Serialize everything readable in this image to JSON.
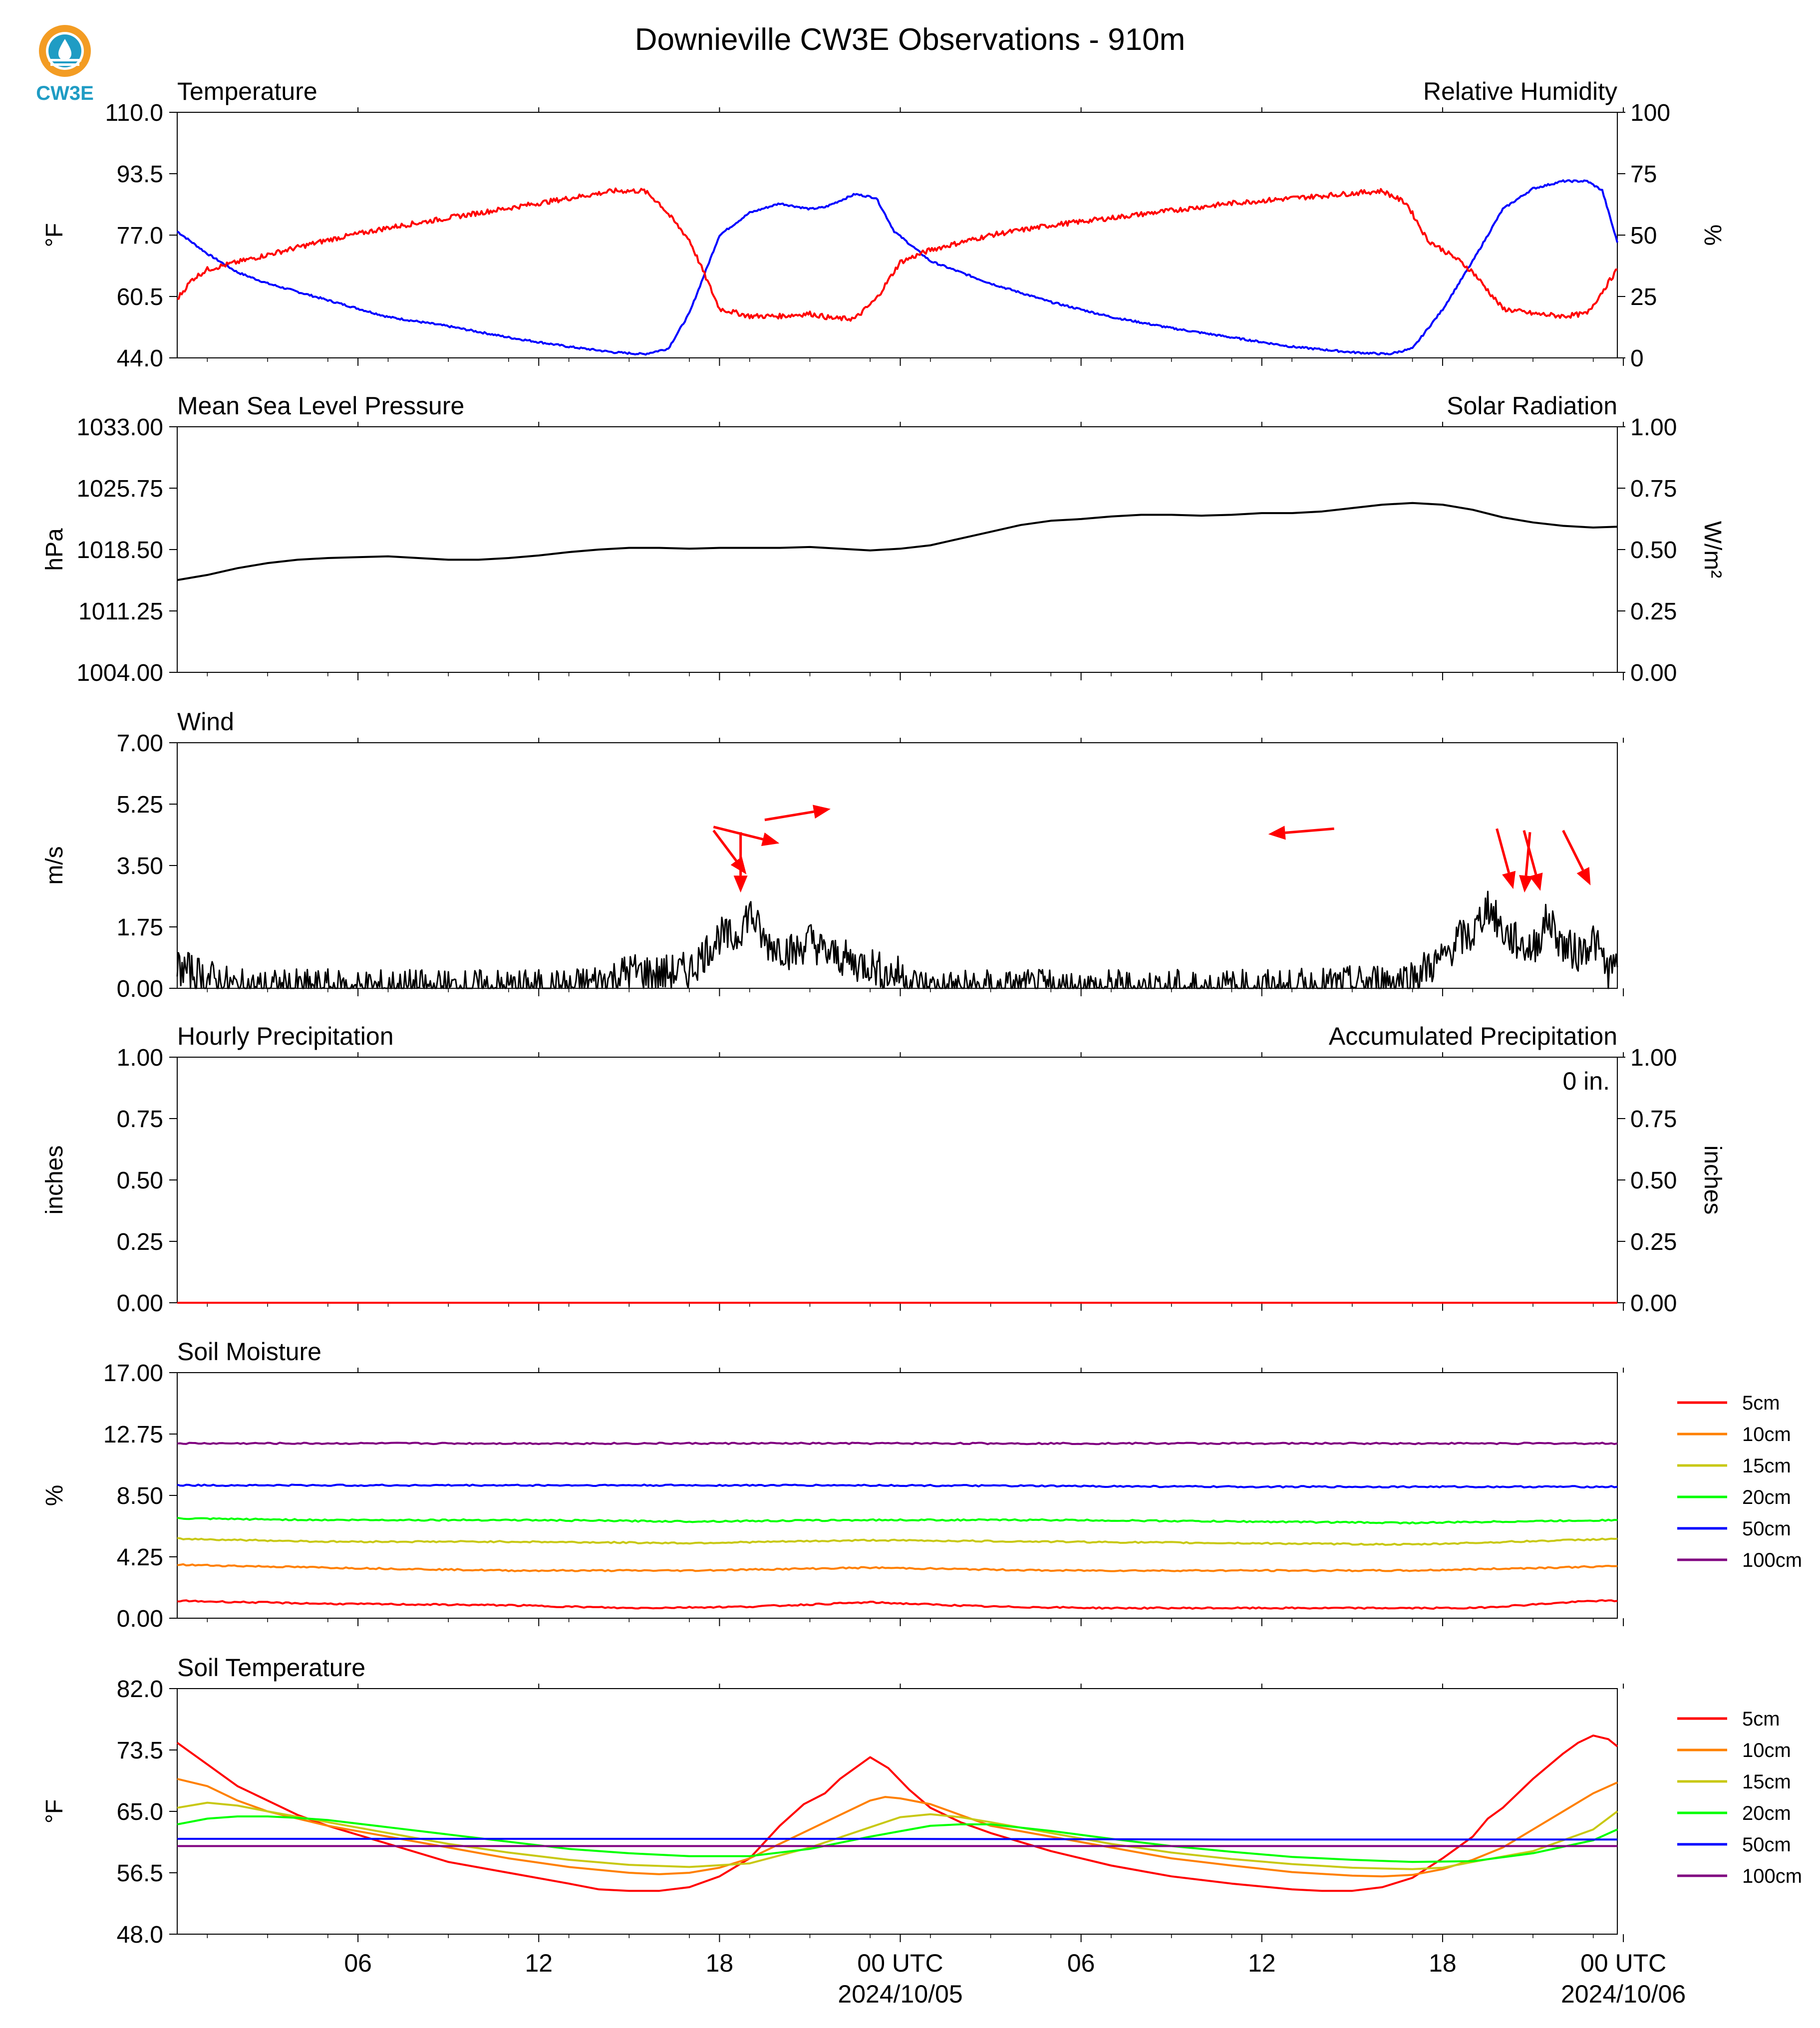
{
  "figure": {
    "title": "Downieville CW3E Observations - 910m",
    "logo_text": "CW3E",
    "x_ticks": [
      "06",
      "12",
      "18",
      "00 UTC",
      "06",
      "12",
      "18",
      "00 UTC"
    ],
    "x_date_labels": [
      "2024/10/05",
      "2024/10/06"
    ],
    "colors": {
      "temperature": "#0000ff",
      "humidity": "#ff0000",
      "solar": "#008000",
      "pressure": "#000000"
    }
  },
  "chart_data": [
    {
      "id": "temp",
      "type": "line",
      "left_title": "Temperature",
      "right_title": "Relative Humidity",
      "ylabel": "°F",
      "ylabel_right": "%",
      "ylim": [
        44,
        110
      ],
      "ylim_right": [
        0,
        100
      ],
      "yticks": [
        "110.0",
        "93.5",
        "77.0",
        "60.5",
        "44.0"
      ],
      "yticks_right": [
        "100",
        "75",
        "50",
        "25",
        "0"
      ],
      "x_hours_range": [
        1,
        48.8
      ],
      "series": [
        {
          "name": "Temperature",
          "axis": "left",
          "color": "#0000ff",
          "x": [
            1,
            2,
            3,
            4,
            6,
            8,
            10,
            12,
            14,
            15.5,
            16.5,
            17.3,
            18,
            19,
            20,
            21,
            22,
            22.5,
            23.5,
            24.2,
            24.8,
            26,
            28,
            30,
            32,
            34,
            36,
            38,
            40,
            41.2,
            42,
            43,
            44,
            45,
            46,
            47,
            47.8,
            48.3,
            48.8
          ],
          "y": [
            78,
            72,
            67,
            64,
            59.5,
            55,
            52.5,
            49.5,
            47,
            45.5,
            45,
            46.5,
            56,
            77,
            83,
            85.5,
            84,
            84.5,
            88,
            87,
            78,
            70,
            64,
            59,
            55,
            52,
            49.5,
            47,
            45.5,
            45,
            46.5,
            57,
            70,
            84,
            89.5,
            91.5,
            91.5,
            89,
            75
          ]
        },
        {
          "name": "Relative Humidity",
          "axis": "right",
          "color": "#ff0000",
          "x": [
            1,
            1.5,
            2,
            3,
            4,
            6,
            8,
            10,
            12,
            14,
            15.5,
            16.5,
            17,
            18,
            19,
            20,
            21,
            22,
            22.8,
            23.5,
            24.2,
            25,
            26,
            28,
            30,
            32,
            34,
            36,
            38,
            40,
            41,
            41.8,
            42.5,
            43.5,
            44,
            45,
            46,
            47,
            47.8,
            48.3,
            48.8
          ],
          "y": [
            24,
            32,
            36,
            39,
            42,
            48,
            53,
            57,
            61,
            65,
            68,
            68,
            63,
            48,
            20,
            17,
            17,
            18,
            16,
            16,
            24,
            39,
            44,
            50,
            54,
            57,
            60,
            63,
            65,
            67,
            68,
            63,
            48,
            40,
            35,
            20,
            18,
            17,
            18,
            27,
            36
          ]
        }
      ]
    },
    {
      "id": "pressure",
      "type": "line",
      "left_title": "Mean Sea Level Pressure",
      "right_title": "Solar Radiation",
      "ylabel": "hPa",
      "ylabel_right": "W/m²",
      "ylim": [
        1004,
        1033
      ],
      "ylim_right": [
        0,
        1
      ],
      "yticks": [
        "1033.00",
        "1025.75",
        "1018.50",
        "1011.25",
        "1004.00"
      ],
      "yticks_right": [
        "1.00",
        "0.75",
        "0.50",
        "0.25",
        "0.00"
      ],
      "series": [
        {
          "name": "Mean Sea Level Pressure",
          "axis": "left",
          "color": "#000000",
          "x": [
            1,
            2,
            3,
            4,
            5,
            6,
            7,
            8,
            9,
            10,
            11,
            12,
            13,
            14,
            15,
            16,
            17,
            18,
            19,
            20,
            21,
            22,
            23,
            24,
            25,
            26,
            27,
            28,
            29,
            30,
            31,
            32,
            33,
            34,
            35,
            36,
            37,
            38,
            39,
            40,
            41,
            42,
            43,
            44,
            45,
            46,
            47,
            48,
            48.8
          ],
          "y": [
            1014.9,
            1015.5,
            1016.3,
            1016.9,
            1017.3,
            1017.5,
            1017.6,
            1017.7,
            1017.5,
            1017.3,
            1017.3,
            1017.5,
            1017.8,
            1018.2,
            1018.5,
            1018.7,
            1018.7,
            1018.6,
            1018.7,
            1018.7,
            1018.7,
            1018.8,
            1018.6,
            1018.4,
            1018.6,
            1019.0,
            1019.8,
            1020.6,
            1021.4,
            1021.9,
            1022.1,
            1022.4,
            1022.6,
            1022.6,
            1022.5,
            1022.6,
            1022.8,
            1022.8,
            1023.0,
            1023.4,
            1023.8,
            1024.0,
            1023.8,
            1023.2,
            1022.3,
            1021.7,
            1021.3,
            1021.1,
            1021.2
          ]
        }
      ]
    },
    {
      "id": "wind",
      "type": "line",
      "left_title": "Wind",
      "ylabel": "m/s",
      "ylim": [
        0,
        7
      ],
      "yticks": [
        "7.00",
        "5.25",
        "3.50",
        "1.75",
        "0.00"
      ],
      "series": [
        {
          "name": "Wind speed",
          "color": "#000000",
          "x": [
            1,
            3,
            6,
            9,
            12,
            14,
            15.5,
            16,
            17,
            18,
            18.5,
            19,
            19.5,
            20,
            20.5,
            21,
            21.5,
            22,
            22.5,
            23,
            23.5,
            24,
            24.5,
            25,
            25.5,
            26,
            28,
            30,
            32,
            34,
            36,
            38,
            40,
            41,
            42,
            42.5,
            43,
            43.5,
            44,
            44.5,
            45,
            45.5,
            46,
            46.5,
            47,
            47.5,
            48,
            48.5,
            48.8
          ],
          "y": [
            0.6,
            0,
            0,
            0,
            0,
            0,
            0.3,
            0.5,
            0.4,
            0.5,
            1.0,
            1.5,
            1.4,
            2.2,
            1.3,
            1.2,
            1.0,
            1.4,
            1.0,
            0.9,
            0.7,
            0.7,
            0.4,
            0.4,
            0.1,
            0,
            0,
            0,
            0,
            0,
            0,
            0,
            0.1,
            0.2,
            0.3,
            0.6,
            0.8,
            1.4,
            1.5,
            2.4,
            1.6,
            1.3,
            1.1,
            2.0,
            1.2,
            1.0,
            1.4,
            0.5,
            0.6
          ]
        }
      ],
      "arrows": [
        {
          "x": 18.8,
          "y": 4.5,
          "dx": 30,
          "dy": -40
        },
        {
          "x": 19.7,
          "y": 4.45,
          "dx": 0,
          "dy": -55
        },
        {
          "x": 18.8,
          "y": 4.6,
          "dx": 60,
          "dy": -15
        },
        {
          "x": 20.5,
          "y": 4.8,
          "dx": 60,
          "dy": 10
        },
        {
          "x": 39.4,
          "y": 4.55,
          "dx": -60,
          "dy": -5
        },
        {
          "x": 44.8,
          "y": 4.55,
          "dx": 15,
          "dy": -55
        },
        {
          "x": 45.7,
          "y": 4.5,
          "dx": 15,
          "dy": -55
        },
        {
          "x": 45.9,
          "y": 4.45,
          "dx": -5,
          "dy": -55
        },
        {
          "x": 47,
          "y": 4.5,
          "dx": 25,
          "dy": -50
        }
      ]
    },
    {
      "id": "precip",
      "type": "line",
      "left_title": "Hourly Precipitation",
      "right_title": "Accumulated Precipitation",
      "ylabel": "inches",
      "ylabel_right": "inches",
      "ylim": [
        0,
        1
      ],
      "ylim_right": [
        0,
        1
      ],
      "yticks": [
        "1.00",
        "0.75",
        "0.50",
        "0.25",
        "0.00"
      ],
      "yticks_right": [
        "1.00",
        "0.75",
        "0.50",
        "0.25",
        "0.00"
      ],
      "annotation": "0 in.",
      "series": [
        {
          "name": "Hourly Precipitation",
          "color": "#0000ff",
          "x": [
            1,
            48.8
          ],
          "y": [
            0,
            0
          ]
        },
        {
          "name": "Accumulated Precipitation",
          "color": "#ff0000",
          "x": [
            1,
            48.8
          ],
          "y": [
            0,
            0
          ]
        }
      ]
    },
    {
      "id": "soilm",
      "type": "line",
      "left_title": "Soil Moisture",
      "ylabel": "%",
      "ylim": [
        0,
        17
      ],
      "yticks": [
        "17.00",
        "12.75",
        "8.50",
        "4.25",
        "0.00"
      ],
      "legend": [
        "5cm",
        "10cm",
        "15cm",
        "20cm",
        "50cm",
        "100cm"
      ],
      "series": [
        {
          "name": "5cm",
          "color": "#ff0000",
          "x": [
            1,
            6,
            12,
            16,
            20,
            24,
            28,
            32,
            36,
            40,
            44,
            48,
            48.8
          ],
          "y": [
            1.2,
            1.0,
            0.9,
            0.7,
            0.8,
            1.1,
            0.8,
            0.7,
            0.7,
            0.7,
            0.7,
            1.2,
            1.2
          ]
        },
        {
          "name": "10cm",
          "color": "#ff8000",
          "x": [
            1,
            6,
            12,
            18,
            24,
            30,
            36,
            42,
            48.8
          ],
          "y": [
            3.7,
            3.5,
            3.3,
            3.3,
            3.5,
            3.3,
            3.3,
            3.3,
            3.6
          ]
        },
        {
          "name": "15cm",
          "color": "#c8c814",
          "x": [
            1,
            6,
            12,
            18,
            24,
            30,
            36,
            42,
            48.8
          ],
          "y": [
            5.5,
            5.3,
            5.3,
            5.2,
            5.4,
            5.3,
            5.2,
            5.1,
            5.5
          ]
        },
        {
          "name": "20cm",
          "color": "#00ff00",
          "x": [
            1,
            6,
            12,
            18,
            24,
            30,
            36,
            42,
            48.8
          ],
          "y": [
            6.9,
            6.8,
            6.8,
            6.7,
            6.8,
            6.8,
            6.7,
            6.6,
            6.8
          ]
        },
        {
          "name": "50cm",
          "color": "#0000ff",
          "x": [
            1,
            12,
            24,
            36,
            48.8
          ],
          "y": [
            9.2,
            9.2,
            9.2,
            9.1,
            9.1
          ]
        },
        {
          "name": "100cm",
          "color": "#800080",
          "x": [
            1,
            48.8
          ],
          "y": [
            12.1,
            12.1
          ]
        }
      ]
    },
    {
      "id": "soilt",
      "type": "line",
      "left_title": "Soil Temperature",
      "ylabel": "°F",
      "ylim": [
        48,
        82
      ],
      "yticks": [
        "82.0",
        "73.5",
        "65.0",
        "56.5",
        "48.0"
      ],
      "legend": [
        "5cm",
        "10cm",
        "15cm",
        "20cm",
        "50cm",
        "100cm"
      ],
      "series": [
        {
          "name": "5cm",
          "color": "#ff0000",
          "x": [
            1,
            2,
            3,
            4,
            5,
            6,
            8,
            10,
            12,
            14,
            15,
            16,
            17,
            18,
            19,
            20,
            21,
            21.8,
            22.5,
            23,
            24,
            24.6,
            25.3,
            26,
            27,
            28,
            30,
            32,
            34,
            36,
            38,
            39,
            40,
            41,
            42,
            43,
            44,
            44.5,
            45,
            46,
            47,
            47.5,
            48,
            48.5,
            48.8
          ],
          "y": [
            74.5,
            71.5,
            68.5,
            66.5,
            64.5,
            63,
            60.5,
            58,
            56.5,
            55,
            54.2,
            54,
            54,
            54.5,
            56,
            58.5,
            63,
            66,
            67.5,
            69.5,
            72.5,
            71,
            68,
            65.5,
            63.5,
            62,
            59.5,
            57.5,
            56,
            55,
            54.2,
            54,
            54,
            54.5,
            55.8,
            58.5,
            61.5,
            64,
            65.5,
            69.5,
            73,
            74.5,
            75.5,
            75,
            74
          ]
        },
        {
          "name": "10cm",
          "color": "#ff8000",
          "x": [
            1,
            2,
            3,
            4,
            6,
            8,
            10,
            12,
            14,
            16,
            17,
            18,
            19,
            20,
            21,
            22,
            23,
            24,
            24.5,
            25,
            26,
            27,
            28,
            30,
            32,
            34,
            36,
            38,
            40,
            41,
            42,
            43,
            44,
            45,
            46,
            47,
            48,
            48.8
          ],
          "y": [
            69.5,
            68.5,
            66.5,
            65,
            63,
            61.5,
            60,
            58.5,
            57.3,
            56.5,
            56.3,
            56.5,
            57.2,
            58.5,
            60.5,
            62.5,
            64.5,
            66.5,
            67,
            66.8,
            66,
            64.5,
            63,
            61.5,
            60,
            58.5,
            57.5,
            56.6,
            56.1,
            56,
            56.2,
            57,
            58.3,
            60,
            62.5,
            65,
            67.5,
            69
          ]
        },
        {
          "name": "15cm",
          "color": "#c8c814",
          "x": [
            1,
            2,
            3,
            4,
            6,
            8,
            10,
            12,
            14,
            16,
            18,
            20,
            22,
            24,
            25,
            26,
            27,
            28,
            30,
            32,
            34,
            36,
            38,
            40,
            42,
            43,
            44,
            46,
            48,
            48.8
          ],
          "y": [
            65.5,
            66.2,
            65.8,
            65,
            63.5,
            62,
            60.5,
            59.3,
            58.3,
            57.6,
            57.3,
            57.8,
            60,
            62.8,
            64.2,
            64.6,
            64.2,
            63.5,
            62,
            60.5,
            59.3,
            58.4,
            57.7,
            57.2,
            57,
            57.2,
            58,
            59.5,
            62.5,
            65
          ]
        },
        {
          "name": "20cm",
          "color": "#00ff00",
          "x": [
            1,
            2,
            3,
            4,
            5,
            6,
            8,
            10,
            12,
            14,
            16,
            18,
            20,
            22,
            24,
            26,
            27,
            28,
            30,
            32,
            34,
            36,
            38,
            40,
            42,
            44,
            46,
            48,
            48.8
          ],
          "y": [
            63.2,
            64,
            64.3,
            64.3,
            64.1,
            63.8,
            62.8,
            61.8,
            60.8,
            59.8,
            59.2,
            58.8,
            58.8,
            59.8,
            61.5,
            63,
            63.2,
            63.2,
            62.3,
            61.2,
            60.2,
            59.4,
            58.7,
            58.3,
            58,
            58.1,
            59.2,
            61,
            62.5
          ]
        },
        {
          "name": "50cm",
          "color": "#0000ff",
          "x": [
            1,
            12,
            24,
            36,
            48.8
          ],
          "y": [
            61.2,
            61.2,
            61.2,
            61.1,
            61.1
          ]
        },
        {
          "name": "100cm",
          "color": "#800080",
          "x": [
            1,
            48.8
          ],
          "y": [
            60.2,
            60.2
          ]
        }
      ]
    }
  ]
}
